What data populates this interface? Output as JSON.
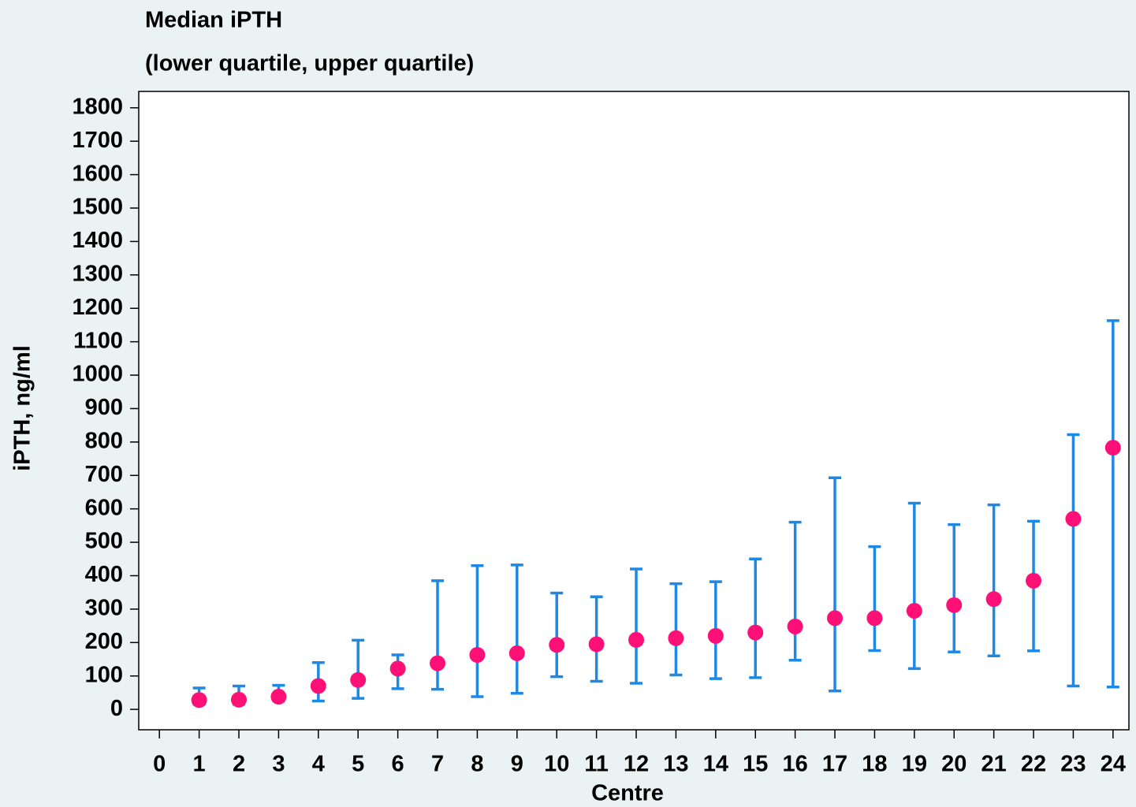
{
  "chart_data": {
    "type": "errorbar",
    "title": "Median iPTH",
    "subtitle": "(lower quartile, upper quartile)",
    "x_label": "Centre",
    "y_label": "iPTH, ng/ml",
    "x": [
      1,
      2,
      3,
      4,
      5,
      6,
      7,
      8,
      9,
      10,
      11,
      12,
      13,
      14,
      15,
      16,
      17,
      18,
      19,
      20,
      21,
      22,
      23,
      24
    ],
    "values": [
      28,
      29,
      38,
      70,
      88,
      122,
      138,
      163,
      168,
      193,
      195,
      208,
      213,
      220,
      230,
      248,
      273,
      273,
      295,
      312,
      330,
      385,
      570,
      783
    ],
    "lower": [
      15,
      15,
      25,
      25,
      33,
      62,
      60,
      38,
      48,
      98,
      84,
      78,
      103,
      92,
      95,
      147,
      55,
      176,
      122,
      172,
      160,
      175,
      70,
      67
    ],
    "upper": [
      64,
      70,
      72,
      140,
      207,
      163,
      385,
      430,
      432,
      348,
      337,
      420,
      376,
      382,
      450,
      560,
      693,
      487,
      617,
      553,
      612,
      563,
      822,
      1163
    ],
    "color": "#ff1077",
    "error_color": "#1e88e5",
    "xlim": [
      -0.52,
      24.4
    ],
    "ylim": [
      -61,
      1849
    ],
    "xticks": [
      0,
      1,
      2,
      3,
      4,
      5,
      6,
      7,
      8,
      9,
      10,
      11,
      12,
      13,
      14,
      15,
      16,
      17,
      18,
      19,
      20,
      21,
      22,
      23,
      24
    ],
    "yticks": [
      0,
      100,
      200,
      300,
      400,
      500,
      600,
      700,
      800,
      900,
      1000,
      1100,
      1200,
      1300,
      1400,
      1500,
      1600,
      1700,
      1800
    ],
    "grid": false
  }
}
